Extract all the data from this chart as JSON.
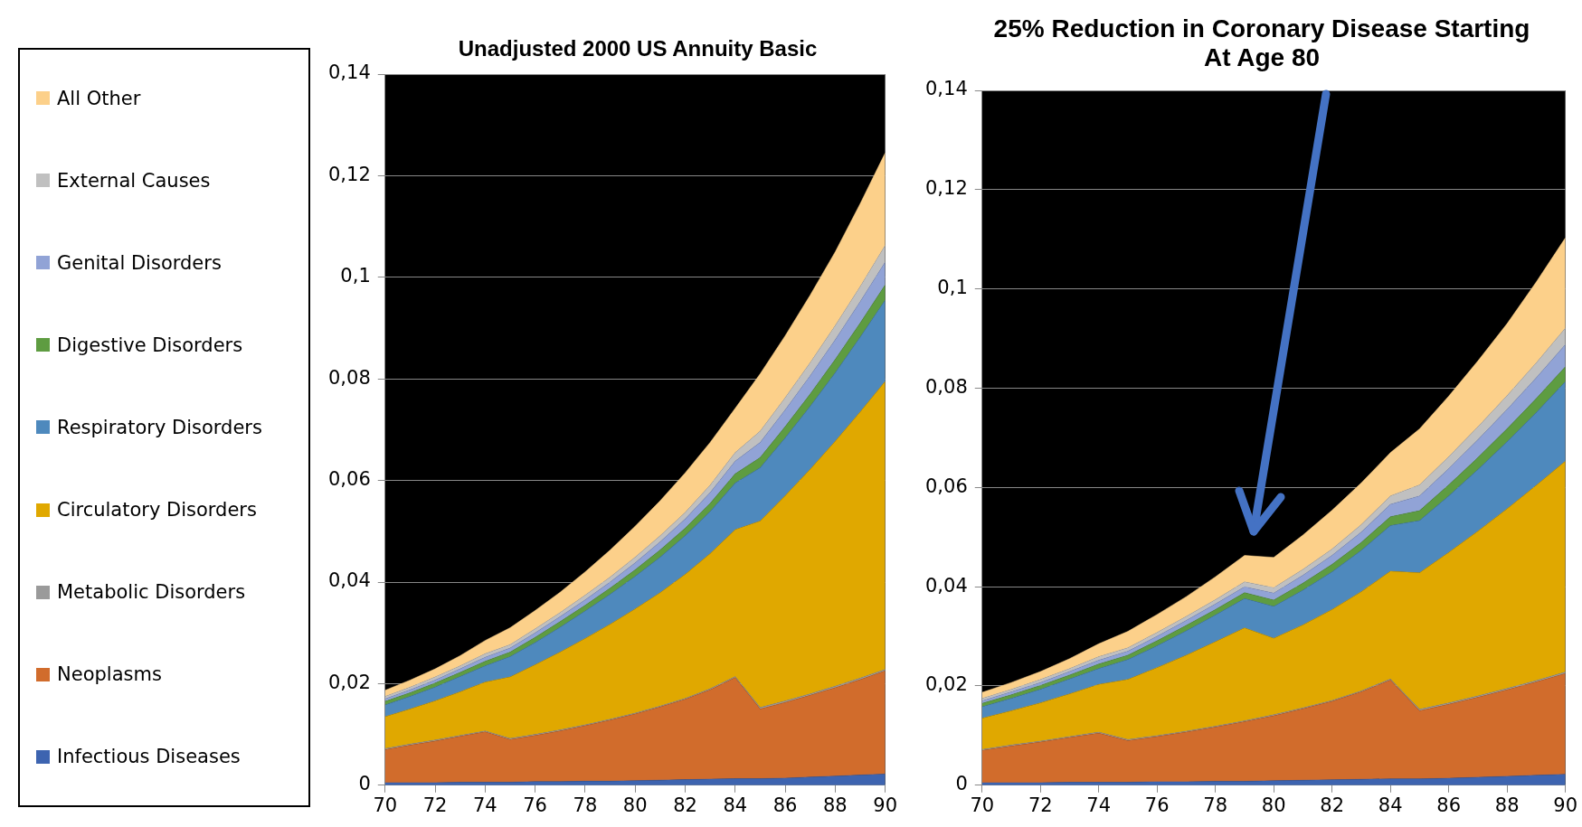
{
  "chart_data": [
    {
      "type": "area",
      "title": "Unadjusted 2000 US Annuity Basic",
      "stacked": true,
      "legend": "left",
      "grid": "y",
      "x": [
        70,
        71,
        72,
        73,
        74,
        75,
        76,
        77,
        78,
        79,
        80,
        81,
        82,
        83,
        84,
        85,
        86,
        87,
        88,
        89,
        90
      ],
      "xlim": [
        70,
        90
      ],
      "xticks": [
        70,
        72,
        74,
        76,
        78,
        80,
        82,
        84,
        86,
        88,
        90
      ],
      "ylim": [
        0,
        0.14
      ],
      "yticks": [
        {
          "value": 0,
          "label": "0"
        },
        {
          "value": 0.02,
          "label": "0,02"
        },
        {
          "value": 0.04,
          "label": "0,04"
        },
        {
          "value": 0.06,
          "label": "0,06"
        },
        {
          "value": 0.08,
          "label": "0,08"
        },
        {
          "value": 0.1,
          "label": "0,1"
        },
        {
          "value": 0.12,
          "label": "0,12"
        },
        {
          "value": 0.14,
          "label": "0,14"
        }
      ],
      "series": [
        {
          "name": "Infectious Diseases",
          "color": "#3d64b0",
          "values": [
            0.0005,
            0.0005,
            0.0005,
            0.0006,
            0.0006,
            0.0006,
            0.0007,
            0.0007,
            0.0008,
            0.0008,
            0.0009,
            0.001,
            0.0011,
            0.0012,
            0.0013,
            0.0013,
            0.0014,
            0.0016,
            0.0018,
            0.002,
            0.0022
          ]
        },
        {
          "name": "Neoplasms",
          "color": "#d16c2c",
          "values": [
            0.0065,
            0.0074,
            0.0082,
            0.009,
            0.0099,
            0.0084,
            0.0091,
            0.01,
            0.0109,
            0.012,
            0.0131,
            0.0144,
            0.0158,
            0.0176,
            0.0199,
            0.0137,
            0.0149,
            0.0161,
            0.0174,
            0.0188,
            0.0203
          ]
        },
        {
          "name": "Metabolic Disorders",
          "color": "#9a9a9a",
          "values": [
            0.0002,
            0.0002,
            0.0002,
            0.0002,
            0.0002,
            0.0002,
            0.0002,
            0.0002,
            0.0002,
            0.0002,
            0.0002,
            0.0002,
            0.0002,
            0.0002,
            0.0002,
            0.0003,
            0.0003,
            0.0003,
            0.0003,
            0.0003,
            0.0003
          ]
        },
        {
          "name": "Circulatory Disorders",
          "color": "#e0a800",
          "values": [
            0.0063,
            0.0069,
            0.0077,
            0.0086,
            0.0096,
            0.0121,
            0.0137,
            0.0153,
            0.017,
            0.0187,
            0.0205,
            0.0223,
            0.0244,
            0.0266,
            0.0289,
            0.0367,
            0.0404,
            0.0442,
            0.0482,
            0.0524,
            0.0567
          ]
        },
        {
          "name": "Respiratory Disorders",
          "color": "#4e89bd",
          "values": [
            0.0023,
            0.0025,
            0.0027,
            0.003,
            0.0032,
            0.004,
            0.0044,
            0.0049,
            0.0054,
            0.0059,
            0.0064,
            0.007,
            0.0076,
            0.0083,
            0.0092,
            0.0105,
            0.0114,
            0.0124,
            0.0135,
            0.0147,
            0.016
          ]
        },
        {
          "name": "Digestive Disorders",
          "color": "#5e9c41",
          "values": [
            0.0007,
            0.0007,
            0.0008,
            0.0008,
            0.0009,
            0.0009,
            0.001,
            0.0011,
            0.0011,
            0.0012,
            0.0013,
            0.0014,
            0.0015,
            0.0016,
            0.0018,
            0.002,
            0.0022,
            0.0024,
            0.0026,
            0.0028,
            0.003
          ]
        },
        {
          "name": "Genital Disorders",
          "color": "#91a3d6",
          "values": [
            0.0005,
            0.0006,
            0.0006,
            0.0007,
            0.0008,
            0.0008,
            0.0009,
            0.001,
            0.0011,
            0.0012,
            0.0014,
            0.0016,
            0.0018,
            0.0021,
            0.0025,
            0.003,
            0.0033,
            0.0036,
            0.0039,
            0.0042,
            0.0045
          ]
        },
        {
          "name": "External Causes",
          "color": "#c0c0c0",
          "values": [
            0.0005,
            0.0005,
            0.0006,
            0.0006,
            0.0007,
            0.0007,
            0.0008,
            0.0008,
            0.0009,
            0.001,
            0.0011,
            0.0012,
            0.0013,
            0.0015,
            0.0017,
            0.0022,
            0.0024,
            0.0026,
            0.0028,
            0.003,
            0.0033
          ]
        },
        {
          "name": "All Other",
          "color": "#fcd08a",
          "values": [
            0.0012,
            0.0014,
            0.0016,
            0.002,
            0.0026,
            0.0033,
            0.0036,
            0.004,
            0.0046,
            0.0053,
            0.0061,
            0.0069,
            0.0078,
            0.0084,
            0.0087,
            0.0113,
            0.0122,
            0.0133,
            0.0145,
            0.0163,
            0.0182
          ]
        }
      ]
    },
    {
      "type": "area",
      "title": "25% Reduction in Coronary Disease Starting At Age 80",
      "stacked": true,
      "grid": "y",
      "x": [
        70,
        71,
        72,
        73,
        74,
        75,
        76,
        77,
        78,
        79,
        80,
        81,
        82,
        83,
        84,
        85,
        86,
        87,
        88,
        89,
        90
      ],
      "xlim": [
        70,
        90
      ],
      "xticks": [
        70,
        72,
        74,
        76,
        78,
        80,
        82,
        84,
        86,
        88,
        90
      ],
      "ylim": [
        0,
        0.14
      ],
      "yticks": [
        {
          "value": 0,
          "label": "0"
        },
        {
          "value": 0.02,
          "label": "0,02"
        },
        {
          "value": 0.04,
          "label": "0,04"
        },
        {
          "value": 0.06,
          "label": "0,06"
        },
        {
          "value": 0.08,
          "label": "0,08"
        },
        {
          "value": 0.1,
          "label": "0,1"
        },
        {
          "value": 0.12,
          "label": "0,12"
        },
        {
          "value": 0.14,
          "label": "0,14"
        }
      ],
      "series": [
        {
          "color": "#3d64b0",
          "values": [
            0.0005,
            0.0005,
            0.0005,
            0.0006,
            0.0006,
            0.0006,
            0.0007,
            0.0007,
            0.0008,
            0.0008,
            0.0009,
            0.001,
            0.0011,
            0.0012,
            0.0013,
            0.0013,
            0.0014,
            0.0016,
            0.0018,
            0.002,
            0.0022
          ]
        },
        {
          "color": "#d16c2c",
          "values": [
            0.0065,
            0.0074,
            0.0082,
            0.009,
            0.0099,
            0.0084,
            0.0091,
            0.01,
            0.0109,
            0.012,
            0.0131,
            0.0144,
            0.0158,
            0.0176,
            0.0199,
            0.0137,
            0.0149,
            0.0161,
            0.0174,
            0.0188,
            0.0203
          ]
        },
        {
          "color": "#9a9a9a",
          "values": [
            0.0002,
            0.0002,
            0.0002,
            0.0002,
            0.0002,
            0.0002,
            0.0002,
            0.0002,
            0.0002,
            0.0002,
            0.0002,
            0.0002,
            0.0002,
            0.0002,
            0.0002,
            0.0003,
            0.0003,
            0.0003,
            0.0003,
            0.0003,
            0.0003
          ]
        },
        {
          "color": "#e0a800",
          "values": [
            0.0063,
            0.0069,
            0.0077,
            0.0086,
            0.0096,
            0.0121,
            0.0137,
            0.0153,
            0.017,
            0.0187,
            0.0154,
            0.0167,
            0.0183,
            0.02,
            0.0217,
            0.0275,
            0.0303,
            0.0332,
            0.0362,
            0.0393,
            0.0425
          ]
        },
        {
          "color": "#4e89bd",
          "values": [
            0.0023,
            0.0025,
            0.0027,
            0.003,
            0.0032,
            0.004,
            0.0044,
            0.0049,
            0.0054,
            0.0059,
            0.0064,
            0.007,
            0.0076,
            0.0083,
            0.0092,
            0.0105,
            0.0114,
            0.0124,
            0.0135,
            0.0147,
            0.016
          ]
        },
        {
          "color": "#5e9c41",
          "values": [
            0.0007,
            0.0007,
            0.0008,
            0.0008,
            0.0009,
            0.0009,
            0.001,
            0.0011,
            0.0011,
            0.0012,
            0.0013,
            0.0014,
            0.0015,
            0.0016,
            0.0018,
            0.002,
            0.0022,
            0.0024,
            0.0026,
            0.0028,
            0.003
          ]
        },
        {
          "color": "#91a3d6",
          "values": [
            0.0005,
            0.0006,
            0.0006,
            0.0007,
            0.0008,
            0.0008,
            0.0009,
            0.001,
            0.0011,
            0.0012,
            0.0014,
            0.0016,
            0.0018,
            0.0021,
            0.0025,
            0.003,
            0.0033,
            0.0036,
            0.0039,
            0.0042,
            0.0045
          ]
        },
        {
          "color": "#c0c0c0",
          "values": [
            0.0005,
            0.0005,
            0.0006,
            0.0006,
            0.0007,
            0.0007,
            0.0008,
            0.0008,
            0.0009,
            0.001,
            0.0011,
            0.0012,
            0.0013,
            0.0015,
            0.0017,
            0.0022,
            0.0024,
            0.0026,
            0.0028,
            0.003,
            0.0033
          ]
        },
        {
          "color": "#fcd08a",
          "values": [
            0.0012,
            0.0014,
            0.0016,
            0.002,
            0.0026,
            0.0033,
            0.0036,
            0.004,
            0.0046,
            0.0053,
            0.0061,
            0.0069,
            0.0078,
            0.0084,
            0.0087,
            0.0113,
            0.0122,
            0.0133,
            0.0145,
            0.0163,
            0.0182
          ]
        }
      ]
    }
  ]
}
